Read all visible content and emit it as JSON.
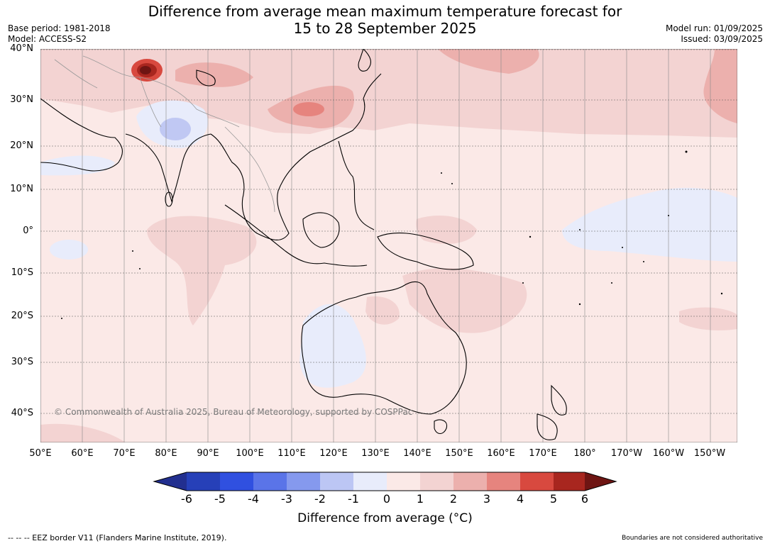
{
  "header": {
    "title_line1": "Difference from average mean maximum temperature forecast for",
    "title_line2": "15 to 28 September 2025",
    "base_period": "Base period: 1981-2018",
    "model": "Model: ACCESS-S2",
    "model_run": "Model run: 01/09/2025",
    "issued": "Issued: 03/09/2025"
  },
  "map": {
    "lat_labels": [
      "40°N",
      "30°N",
      "20°N",
      "10°N",
      "0°",
      "10°S",
      "20°S",
      "30°S",
      "40°S"
    ],
    "lon_labels": [
      "50°E",
      "60°E",
      "70°E",
      "80°E",
      "90°E",
      "100°E",
      "110°E",
      "120°E",
      "130°E",
      "140°E",
      "150°E",
      "160°E",
      "170°E",
      "180°",
      "170°W",
      "160°W",
      "150°W"
    ],
    "copyright": "© Commonwealth of Australia 2025, Bureau of Meteorology, supported by COSPPac",
    "colors": {
      "background_anomaly": "#fbe9e7",
      "warm_1_2": "#f3d3d2",
      "warm_2_3": "#ecb0ad",
      "warm_3_4": "#e6847e",
      "hot_spot": "#8c1a18",
      "cool_0_1": "#e8ecfb",
      "cool_1_2": "#c0c8f3",
      "land_border": "#000000",
      "country_border": "#888888",
      "grid": "#555555"
    }
  },
  "colorbar": {
    "tick_labels": [
      "-6",
      "-5",
      "-4",
      "-3",
      "-2",
      "-1",
      "0",
      "1",
      "2",
      "3",
      "4",
      "5",
      "6"
    ],
    "colors": [
      "#222f8f",
      "#2640b8",
      "#3050e0",
      "#5a74e8",
      "#8599ee",
      "#bcc6f4",
      "#e8ecfb",
      "#fbe9e7",
      "#f3d3d2",
      "#ecb0ad",
      "#e6847e",
      "#d8493f",
      "#a8261f",
      "#6e1513"
    ],
    "label": "Difference from average (°C)"
  },
  "footer": {
    "eez_note": "--  --  -- EEZ border V11 (Flanders Marine Institute, 2019).",
    "boundaries_note": "Boundaries are not considered authoritative"
  }
}
